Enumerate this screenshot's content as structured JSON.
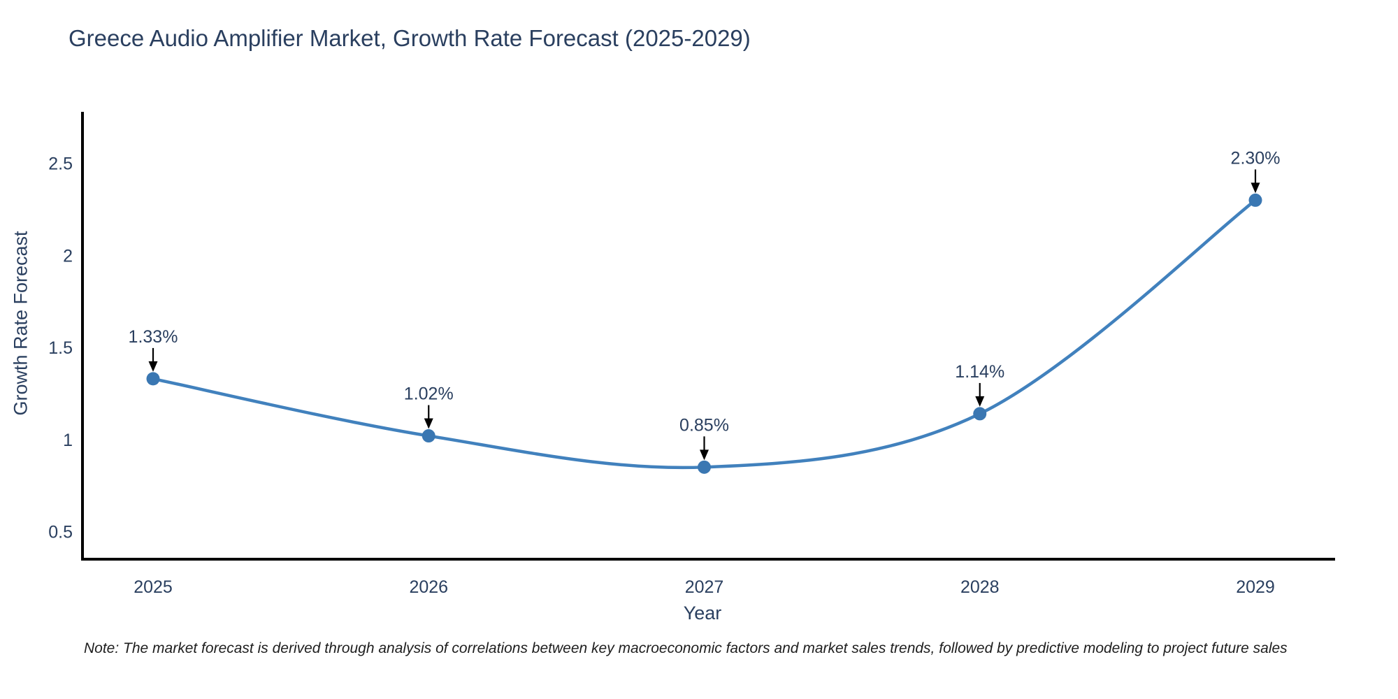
{
  "title": "Greece Audio Amplifier Market, Growth Rate Forecast (2025-2029)",
  "footnote": "Note: The market forecast is derived through analysis of correlations between key macroeconomic factors and market sales trends, followed by predictive modeling to project future sales",
  "chart_data": {
    "type": "line",
    "line_shape": "spline",
    "title": "Greece Audio Amplifier Market, Growth Rate Forecast (2025-2029)",
    "xlabel": "Year",
    "ylabel": "Growth Rate Forecast",
    "x": [
      2025,
      2026,
      2027,
      2028,
      2029
    ],
    "series": [
      {
        "name": "Growth Rate Forecast",
        "values": [
          1.33,
          1.02,
          0.85,
          1.14,
          2.3
        ],
        "point_labels": [
          "1.33%",
          "1.02%",
          "0.85%",
          "1.14%",
          "2.30%"
        ]
      }
    ],
    "yticks": [
      0.5,
      1,
      1.5,
      2,
      2.5
    ],
    "ylim": [
      0.35,
      2.78
    ],
    "grid": false,
    "legend": "none",
    "colors": {
      "line": "#4181bd",
      "marker": "#3a77b2",
      "arrow": "#000000",
      "axis": "#000000",
      "text": "#2a3f5f",
      "annotation": "#2a3f5f"
    }
  }
}
